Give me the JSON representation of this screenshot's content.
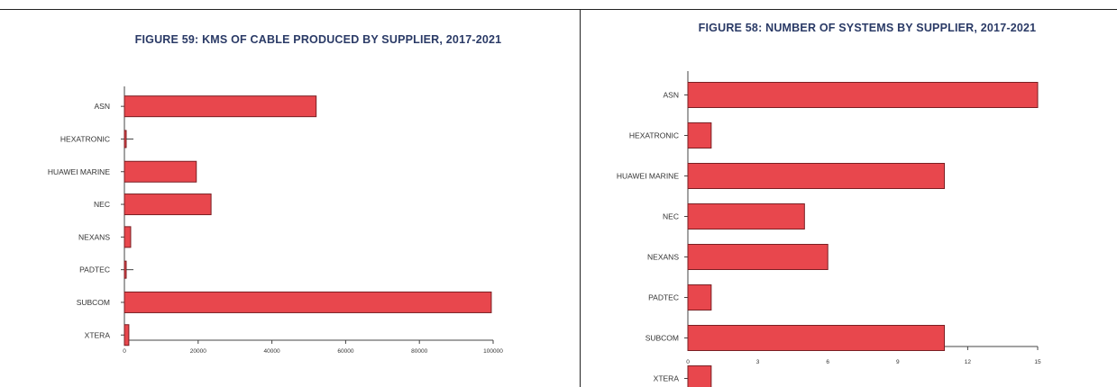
{
  "chart_data": [
    {
      "type": "bar",
      "orientation": "horizontal",
      "title": "FIGURE 59: KMS OF CABLE PRODUCED BY SUPPLIER, 2017-2021",
      "categories": [
        "ASN",
        "HEXATRONIC",
        "HUAWEI MARINE",
        "NEC",
        "NEXANS",
        "PADTEC",
        "SUBCOM",
        "XTERA"
      ],
      "values": [
        52000,
        150,
        19500,
        23500,
        1700,
        400,
        99500,
        1200
      ],
      "xlim": [
        0,
        100000
      ],
      "xticks": [
        "0",
        "20000",
        "40000",
        "60000",
        "80000",
        "100000"
      ],
      "tick_values": [
        0,
        20000,
        40000,
        60000,
        80000,
        100000
      ],
      "grid": false,
      "bar_color": "#e8474d"
    },
    {
      "type": "bar",
      "orientation": "horizontal",
      "title": "FIGURE 58: NUMBER OF SYSTEMS BY SUPPLIER, 2017-2021",
      "categories": [
        "ASN",
        "HEXATRONIC",
        "HUAWEI MARINE",
        "NEC",
        "NEXANS",
        "PADTEC",
        "SUBCOM",
        "XTERA"
      ],
      "values": [
        15,
        1,
        11,
        5,
        6,
        1,
        11,
        1
      ],
      "xlim": [
        0,
        15
      ],
      "xticks": [
        "0",
        "3",
        "6",
        "9",
        "12",
        "15"
      ],
      "tick_values": [
        0,
        3,
        6,
        9,
        12,
        15
      ],
      "grid": false,
      "bar_color": "#e8474d"
    }
  ],
  "title_color": "#2a3a66"
}
